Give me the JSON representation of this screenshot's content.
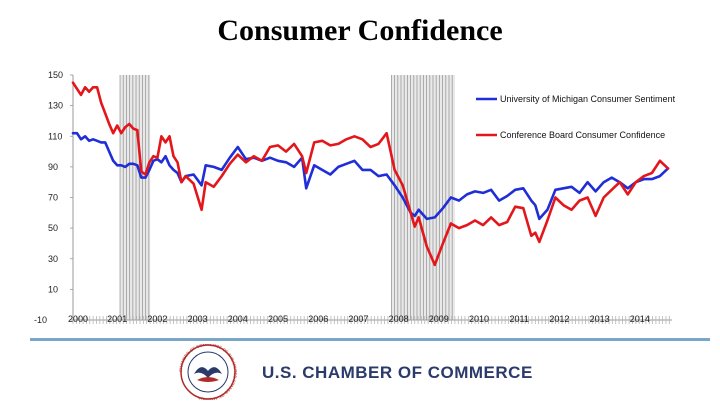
{
  "slide": {
    "title": "Consumer Confidence",
    "org_name": "U.S. CHAMBER OF COMMERCE",
    "seal_text": "CHAMBER OF COMMERCE OF THE UNITED STATES OF AMERICA",
    "colors": {
      "footer_rule": "#7aa6c8",
      "org_text": "#2a3a6b"
    }
  },
  "chart_data": {
    "type": "line",
    "title": "Consumer Confidence",
    "xlabel": "",
    "ylabel": "",
    "xlim": [
      2000,
      2014.9
    ],
    "ylim": [
      -10,
      150
    ],
    "y_ticks": [
      150,
      130,
      110,
      90,
      70,
      50,
      30,
      10,
      -10
    ],
    "x_ticks": [
      {
        "value": 2000,
        "label": "2000"
      },
      {
        "value": 2001,
        "label": "2001"
      },
      {
        "value": 2002,
        "label": "2002"
      },
      {
        "value": 2003,
        "label": "2003"
      },
      {
        "value": 2004,
        "label": "2004"
      },
      {
        "value": 2005,
        "label": "2005"
      },
      {
        "value": 2006,
        "label": "2006"
      },
      {
        "value": 2007,
        "label": "2007"
      },
      {
        "value": 2008,
        "label": "2008"
      },
      {
        "value": 2009,
        "label": "2009"
      },
      {
        "value": 2010,
        "label": "2010"
      },
      {
        "value": 2011,
        "label": "2011"
      },
      {
        "value": 2012,
        "label": "2012"
      },
      {
        "value": 2013,
        "label": "2013"
      },
      {
        "value": 2014,
        "label": "2014"
      }
    ],
    "recessions": [
      {
        "start": 2001.17,
        "end": 2001.92
      },
      {
        "start": 2007.92,
        "end": 2009.5
      }
    ],
    "legend_position": "top-right",
    "series": [
      {
        "name": "University of Michigan Consumer Sentiment",
        "color": "#1f2ed6",
        "x": [
          2000.0,
          2000.1,
          2000.2,
          2000.3,
          2000.4,
          2000.5,
          2000.6,
          2000.7,
          2000.8,
          2000.9,
          2001.0,
          2001.1,
          2001.2,
          2001.3,
          2001.4,
          2001.5,
          2001.6,
          2001.7,
          2001.8,
          2001.9,
          2002.0,
          2002.1,
          2002.2,
          2002.3,
          2002.4,
          2002.5,
          2002.6,
          2002.7,
          2002.8,
          2003.0,
          2003.2,
          2003.3,
          2003.5,
          2003.7,
          2003.9,
          2004.1,
          2004.3,
          2004.5,
          2004.7,
          2004.9,
          2005.1,
          2005.3,
          2005.5,
          2005.7,
          2005.8,
          2006.0,
          2006.2,
          2006.4,
          2006.6,
          2006.8,
          2007.0,
          2007.2,
          2007.4,
          2007.6,
          2007.8,
          2008.0,
          2008.2,
          2008.4,
          2008.5,
          2008.6,
          2008.8,
          2009.0,
          2009.2,
          2009.4,
          2009.6,
          2009.8,
          2010.0,
          2010.2,
          2010.4,
          2010.6,
          2010.8,
          2011.0,
          2011.2,
          2011.4,
          2011.5,
          2011.6,
          2011.8,
          2012.0,
          2012.2,
          2012.4,
          2012.6,
          2012.8,
          2013.0,
          2013.2,
          2013.4,
          2013.6,
          2013.8,
          2014.0,
          2014.2,
          2014.4,
          2014.6,
          2014.8
        ],
        "y": [
          112,
          112,
          108,
          110,
          107,
          108,
          107,
          106,
          106,
          100,
          94,
          91,
          91,
          90,
          92,
          92,
          91,
          83,
          83,
          88,
          94,
          95,
          93,
          97,
          91,
          88,
          86,
          80,
          84,
          85,
          78,
          91,
          90,
          88,
          96,
          103,
          95,
          96,
          94,
          96,
          94,
          93,
          90,
          96,
          76,
          91,
          88,
          85,
          90,
          92,
          94,
          88,
          88,
          84,
          85,
          78,
          70,
          60,
          58,
          62,
          56,
          57,
          63,
          70,
          68,
          72,
          74,
          73,
          75,
          68,
          71,
          75,
          76,
          68,
          65,
          56,
          62,
          75,
          76,
          77,
          73,
          80,
          74,
          80,
          83,
          80,
          76,
          80,
          82,
          82,
          84,
          89
        ]
      },
      {
        "name": "Conference Board Consumer Confidence",
        "color": "#e3161c",
        "x": [
          2000.0,
          2000.1,
          2000.2,
          2000.3,
          2000.4,
          2000.5,
          2000.6,
          2000.7,
          2000.8,
          2000.9,
          2001.0,
          2001.1,
          2001.2,
          2001.3,
          2001.4,
          2001.5,
          2001.6,
          2001.7,
          2001.8,
          2001.9,
          2002.0,
          2002.1,
          2002.2,
          2002.3,
          2002.4,
          2002.5,
          2002.6,
          2002.7,
          2002.8,
          2003.0,
          2003.2,
          2003.3,
          2003.5,
          2003.7,
          2003.9,
          2004.1,
          2004.3,
          2004.5,
          2004.7,
          2004.9,
          2005.1,
          2005.3,
          2005.5,
          2005.7,
          2005.8,
          2006.0,
          2006.2,
          2006.4,
          2006.6,
          2006.8,
          2007.0,
          2007.2,
          2007.4,
          2007.6,
          2007.8,
          2008.0,
          2008.2,
          2008.4,
          2008.5,
          2008.6,
          2008.8,
          2009.0,
          2009.2,
          2009.4,
          2009.6,
          2009.8,
          2010.0,
          2010.2,
          2010.4,
          2010.6,
          2010.8,
          2011.0,
          2011.2,
          2011.4,
          2011.5,
          2011.6,
          2011.8,
          2012.0,
          2012.2,
          2012.4,
          2012.6,
          2012.8,
          2013.0,
          2013.2,
          2013.4,
          2013.6,
          2013.8,
          2014.0,
          2014.2,
          2014.4,
          2014.6,
          2014.8
        ],
        "y": [
          145,
          141,
          137,
          142,
          139,
          142,
          142,
          132,
          125,
          118,
          112,
          117,
          112,
          116,
          118,
          115,
          114,
          87,
          85,
          93,
          97,
          96,
          110,
          106,
          110,
          97,
          93,
          80,
          84,
          79,
          62,
          80,
          77,
          84,
          92,
          98,
          93,
          97,
          94,
          103,
          104,
          100,
          105,
          97,
          86,
          106,
          107,
          104,
          105,
          108,
          110,
          108,
          103,
          105,
          112,
          88,
          78,
          60,
          51,
          57,
          38,
          26,
          40,
          53,
          50,
          52,
          55,
          52,
          57,
          52,
          54,
          64,
          63,
          45,
          47,
          41,
          55,
          70,
          65,
          62,
          68,
          70,
          58,
          70,
          75,
          80,
          72,
          80,
          84,
          86,
          94,
          89
        ]
      }
    ]
  }
}
